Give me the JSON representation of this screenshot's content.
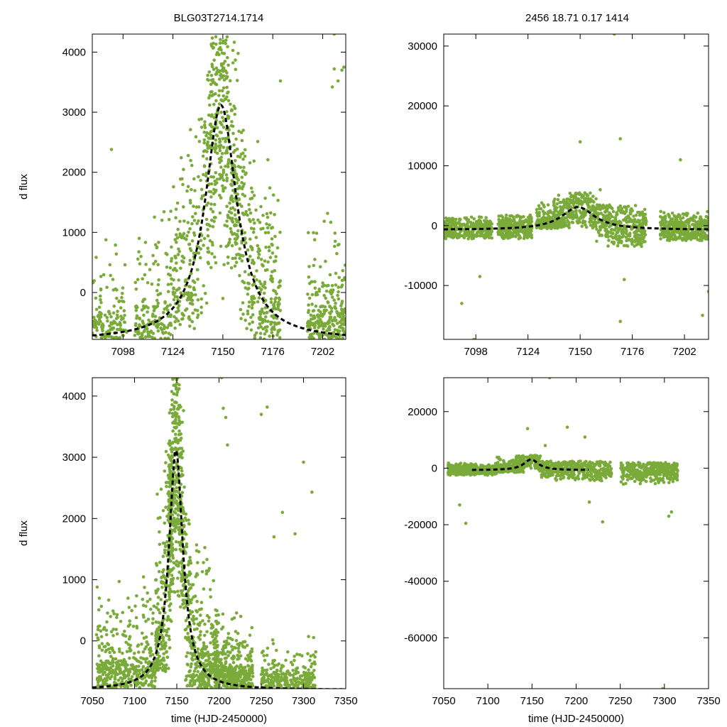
{
  "figure": {
    "header_left": "BLG03T2714.1714",
    "header_right": "2456  18.71  0.17  1414",
    "colors": {
      "points": "#7aab3a",
      "model": "#000000",
      "axes": "#000000"
    }
  },
  "chart_data": [
    {
      "type": "scatter",
      "position": "top-left",
      "title": "",
      "xlabel": "",
      "ylabel": "d flux",
      "xlim": [
        7082,
        7214
      ],
      "ylim": [
        -780,
        4300
      ],
      "xticks": [
        7098,
        7124,
        7150,
        7176,
        7202
      ],
      "yticks": [
        0,
        1000,
        2000,
        3000,
        4000
      ],
      "series": [
        {
          "kind": "points",
          "description_visible": false,
          "clusters": [
            {
              "x": [
                7082,
                7100
              ],
              "y": [
                -780,
                1600
              ],
              "n": 140
            },
            {
              "x": [
                7104,
                7124
              ],
              "y": [
                -780,
                2000
              ],
              "n": 170
            },
            {
              "x": [
                7124,
                7142
              ],
              "y": [
                -600,
                3000
              ],
              "n": 220
            },
            {
              "x": [
                7142,
                7158
              ],
              "y": [
                400,
                4300
              ],
              "n": 380
            },
            {
              "x": [
                7158,
                7180
              ],
              "y": [
                -780,
                2700
              ],
              "n": 300
            },
            {
              "x": [
                7194,
                7214
              ],
              "y": [
                -780,
                2000
              ],
              "n": 260
            }
          ],
          "outliers": [
            [
              7092,
              2380
            ],
            [
              7180,
              3520
            ],
            [
              7207,
              3420
            ],
            [
              7208,
              3720
            ],
            [
              7210,
              3520
            ],
            [
              7212,
              3700
            ],
            [
              7213,
              3750
            ],
            [
              7208,
              4300
            ],
            [
              7150,
              -100
            ]
          ]
        },
        {
          "kind": "model",
          "peak_x": 7149,
          "peak_y": 3120,
          "base_y": -800,
          "tE": 10
        }
      ]
    },
    {
      "type": "scatter",
      "position": "top-right",
      "title": "",
      "xlabel": "",
      "ylabel": "",
      "xlim": [
        7082,
        7214
      ],
      "ylim": [
        -19000,
        32000
      ],
      "xticks": [
        7098,
        7124,
        7150,
        7176,
        7202
      ],
      "yticks": [
        -10000,
        0,
        10000,
        20000,
        30000
      ],
      "series": [
        {
          "kind": "points",
          "clusters": [
            {
              "x": [
                7082,
                7106
              ],
              "y": [
                -2200,
                1500
              ],
              "n": 300
            },
            {
              "x": [
                7109,
                7126
              ],
              "y": [
                -2200,
                1800
              ],
              "n": 280
            },
            {
              "x": [
                7128,
                7158
              ],
              "y": [
                -500,
                5500
              ],
              "n": 420
            },
            {
              "x": [
                7158,
                7183
              ],
              "y": [
                -3500,
                3500
              ],
              "n": 340
            },
            {
              "x": [
                7190,
                7214
              ],
              "y": [
                -2500,
                2500
              ],
              "n": 380
            }
          ],
          "outliers": [
            [
              7091,
              -13000
            ],
            [
              7097,
              -19000
            ],
            [
              7150,
              14000
            ],
            [
              7167,
              32000
            ],
            [
              7170,
              14500
            ],
            [
              7170,
              -16000
            ],
            [
              7172,
              -9000
            ],
            [
              7200,
              11000
            ],
            [
              7211,
              -15000
            ],
            [
              7214,
              -11000
            ],
            [
              7100,
              -8500
            ],
            [
              7160,
              6000
            ]
          ]
        },
        {
          "kind": "model",
          "peak_x": 7149,
          "peak_y": 3100,
          "base_y": -700,
          "tE": 10
        }
      ]
    },
    {
      "type": "scatter",
      "position": "bottom-left",
      "title": "",
      "xlabel": "time (HJD-2450000)",
      "ylabel": "d flux",
      "xlim": [
        7050,
        7350
      ],
      "ylim": [
        -780,
        4300
      ],
      "xticks": [
        7050,
        7100,
        7150,
        7200,
        7250,
        7300,
        7350
      ],
      "yticks": [
        0,
        1000,
        2000,
        3000,
        4000
      ],
      "series": [
        {
          "kind": "points",
          "clusters": [
            {
              "x": [
                7055,
                7125
              ],
              "y": [
                -780,
                1500
              ],
              "n": 420
            },
            {
              "x": [
                7125,
                7145
              ],
              "y": [
                -500,
                3200
              ],
              "n": 260
            },
            {
              "x": [
                7140,
                7160
              ],
              "y": [
                500,
                4300
              ],
              "n": 380
            },
            {
              "x": [
                7160,
                7200
              ],
              "y": [
                -780,
                2200
              ],
              "n": 360
            },
            {
              "x": [
                7195,
                7240
              ],
              "y": [
                -780,
                1000
              ],
              "n": 400
            },
            {
              "x": [
                7250,
                7315
              ],
              "y": [
                -780,
                500
              ],
              "n": 260
            }
          ],
          "outliers": [
            [
              7205,
              3800
            ],
            [
              7208,
              3650
            ],
            [
              7203,
              4300
            ],
            [
              7257,
              3820
            ],
            [
              7250,
              3700
            ],
            [
              7210,
              3200
            ],
            [
              7275,
              2100
            ],
            [
              7300,
              2920
            ],
            [
              7310,
              2430
            ],
            [
              7265,
              1700
            ],
            [
              7290,
              1750
            ]
          ]
        },
        {
          "kind": "model",
          "peak_x": 7149,
          "peak_y": 3120,
          "base_y": -800,
          "tE": 10
        }
      ]
    },
    {
      "type": "scatter",
      "position": "bottom-right",
      "title": "",
      "xlabel": "time (HJD-2450000)",
      "ylabel": "",
      "xlim": [
        7050,
        7350
      ],
      "ylim": [
        -78000,
        32000
      ],
      "xticks": [
        7050,
        7100,
        7150,
        7200,
        7250,
        7300,
        7350
      ],
      "yticks": [
        -60000,
        -40000,
        -20000,
        0,
        20000
      ],
      "series": [
        {
          "kind": "points",
          "clusters": [
            {
              "x": [
                7055,
                7110
              ],
              "y": [
                -2500,
                1800
              ],
              "n": 380
            },
            {
              "x": [
                7110,
                7160
              ],
              "y": [
                -1500,
                4500
              ],
              "n": 360
            },
            {
              "x": [
                7160,
                7240
              ],
              "y": [
                -4500,
                2500
              ],
              "n": 420
            },
            {
              "x": [
                7250,
                7315
              ],
              "y": [
                -6000,
                2000
              ],
              "n": 360
            }
          ],
          "outliers": [
            [
              7068,
              -13000
            ],
            [
              7075,
              -19500
            ],
            [
              7170,
              32000
            ],
            [
              7190,
              14500
            ],
            [
              7210,
              11000
            ],
            [
              7230,
              -19000
            ],
            [
              7215,
              -12000
            ],
            [
              7305,
              -17000
            ],
            [
              7308,
              -15500
            ],
            [
              7298,
              -78000
            ],
            [
              7145,
              14000
            ],
            [
              7165,
              8000
            ]
          ]
        },
        {
          "kind": "model",
          "peak_x": 7149,
          "peak_y": 3100,
          "base_y": -700,
          "tE": 10,
          "x_range": [
            7082,
            7214
          ]
        }
      ]
    }
  ]
}
